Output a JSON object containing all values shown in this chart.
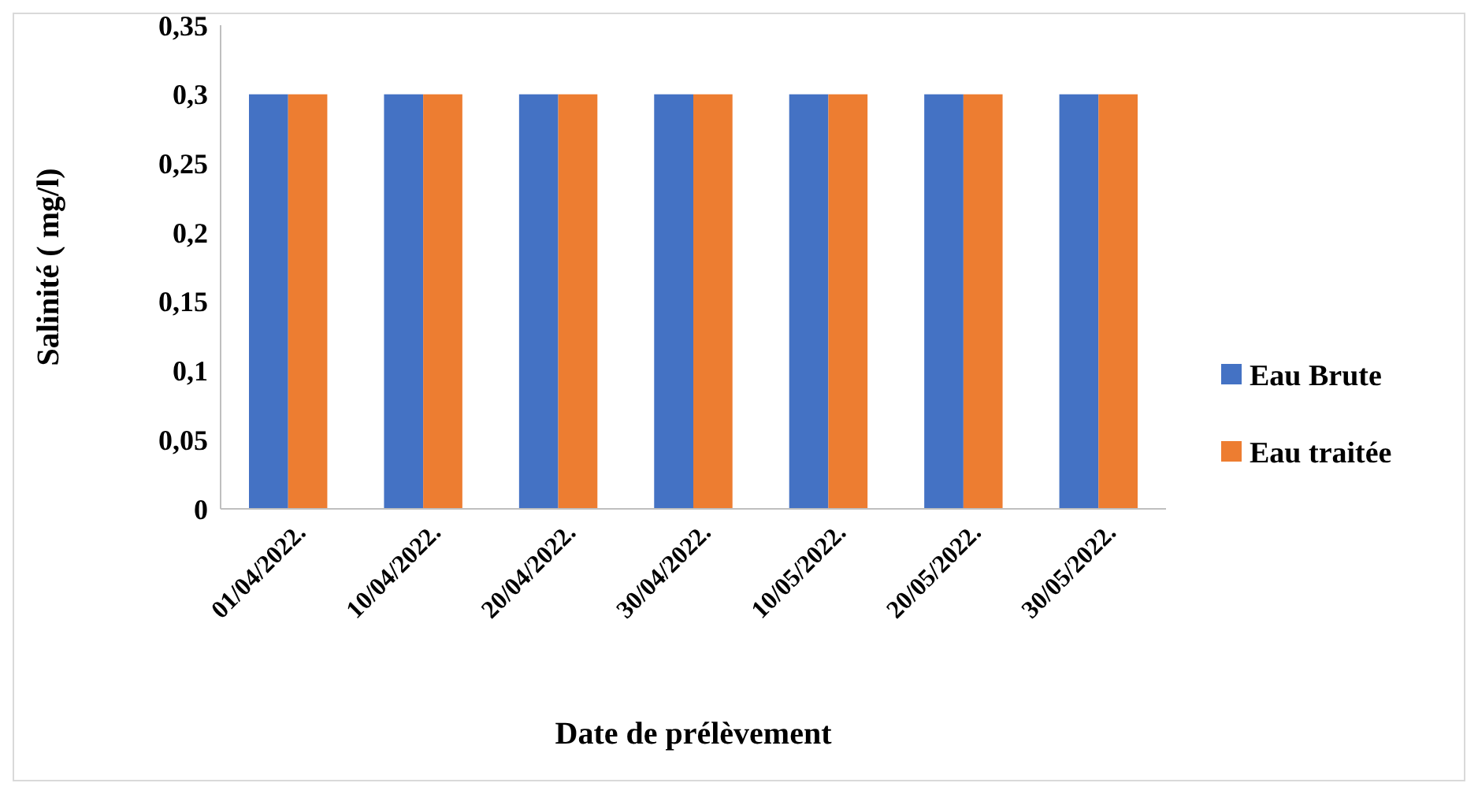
{
  "chart_data": {
    "type": "bar",
    "xlabel": "Date de prélèvement",
    "ylabel": "Salinité ( mg/l)",
    "categories": [
      "01/04/2022.",
      "10/04/2022.",
      "20/04/2022.",
      "30/04/2022.",
      "10/05/2022.",
      "20/05/2022.",
      "30/05/2022."
    ],
    "series": [
      {
        "name": "Eau Brute",
        "color": "#4472c4",
        "values": [
          0.3,
          0.3,
          0.3,
          0.3,
          0.3,
          0.3,
          0.3
        ]
      },
      {
        "name": "Eau traitée",
        "color": "#ed7d31",
        "values": [
          0.3,
          0.3,
          0.3,
          0.3,
          0.3,
          0.3,
          0.3
        ]
      }
    ],
    "ylim": [
      0,
      0.35
    ],
    "yticks": [
      0,
      {
        "value": 0.05,
        "label": "0,05"
      },
      {
        "value": 0.1,
        "label": "0,1"
      },
      {
        "value": 0.15,
        "label": "0,15"
      },
      {
        "value": 0.2,
        "label": "0,2"
      },
      {
        "value": 0.25,
        "label": "0,25"
      },
      {
        "value": 0.3,
        "label": "0,3"
      },
      {
        "value": 0.35,
        "label": "0,35"
      }
    ],
    "grid": false,
    "legend": "right"
  }
}
